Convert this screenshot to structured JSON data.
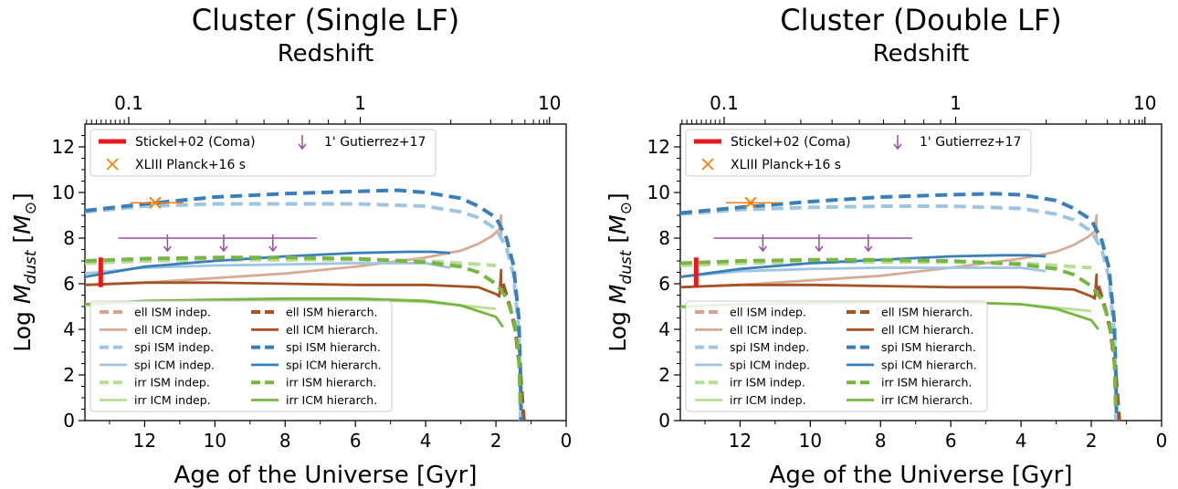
{
  "chart_data": [
    {
      "type": "line",
      "title": "Cluster (Single LF)",
      "xlabel": "Age of the Universe [Gyr]",
      "ylabel": "Log M_dust [M_sun]",
      "ylabel_parts": {
        "main": "Log ",
        "sym": "M",
        "sub": "dust",
        "unit_open": " [",
        "unit_sym": "M",
        "unit_sub": "⊙",
        "unit_close": "]"
      },
      "top_xlabel": "Redshift",
      "xlim": [
        13.7,
        0
      ],
      "ylim": [
        0,
        13
      ],
      "x_ticks": [
        "12",
        "10",
        "8",
        "6",
        "4",
        "2",
        "0"
      ],
      "y_ticks": [
        "0",
        "2",
        "4",
        "6",
        "8",
        "10",
        "12"
      ],
      "top_ticks": [
        "0.1",
        "1",
        "10"
      ],
      "data_legend": {
        "position": "upper left",
        "entries": [
          "Stickel+02 (Coma)",
          "XLIII Planck+16 s",
          "1' Gutierrez+17"
        ]
      },
      "series_legend": {
        "position": "lower left",
        "entries": [
          "ell ISM indep.",
          "ell ICM indep.",
          "spi ISM indep.",
          "spi ICM indep.",
          "irr ISM indep.",
          "irr ICM indep.",
          "ell ISM hierarch.",
          "ell ICM hierarch.",
          "spi ISM hierarch.",
          "spi ICM hierarch.",
          "irr ISM hierarch.",
          "irr ICM hierarch."
        ]
      },
      "series": [
        {
          "name": "ell ISM indep.",
          "color": "#d9a38a",
          "dash": true,
          "x": [
            13.7
          ],
          "y": [
            6.0
          ]
        },
        {
          "name": "ell ICM indep.",
          "color": "#d8ab97",
          "dash": false,
          "x": [
            13.7,
            12,
            10,
            8,
            6,
            4,
            3,
            2.5,
            2.1,
            1.9,
            1.85,
            1.85
          ],
          "y": [
            5.95,
            6.05,
            6.25,
            6.45,
            6.75,
            7.15,
            7.45,
            7.75,
            8.1,
            8.4,
            9.0,
            8.0
          ]
        },
        {
          "name": "spi ISM indep.",
          "color": "#9ec5e1",
          "dash": true,
          "x": [
            13.7,
            12,
            10,
            8,
            6,
            4,
            3,
            2.5,
            2,
            1.7,
            1.5,
            1.35,
            1.3
          ],
          "y": [
            9.15,
            9.4,
            9.5,
            9.5,
            9.5,
            9.4,
            9.15,
            8.9,
            8.4,
            7.6,
            6.4,
            4.0,
            0
          ]
        },
        {
          "name": "spi ICM indep.",
          "color": "#9ec5e1",
          "dash": false,
          "x": [
            13.7,
            12,
            10,
            8,
            6,
            4,
            3.3
          ],
          "y": [
            6.45,
            6.7,
            6.8,
            6.85,
            6.9,
            6.9,
            6.7
          ]
        },
        {
          "name": "irr ISM indep.",
          "color": "#b6df94",
          "dash": true,
          "x": [
            13.7,
            12,
            10,
            8,
            6,
            4,
            2
          ],
          "y": [
            6.9,
            7.0,
            7.05,
            7.05,
            7.05,
            7.0,
            6.8
          ]
        },
        {
          "name": "irr ICM indep.",
          "color": "#b6df94",
          "dash": false,
          "x": [
            13.7,
            12,
            10,
            8,
            6,
            4,
            2
          ],
          "y": [
            5.05,
            5.2,
            5.25,
            5.3,
            5.3,
            5.2,
            4.9
          ]
        },
        {
          "name": "ell ISM hierarch.",
          "color": "#a65224",
          "dash": true,
          "x": [
            1.8,
            1.6,
            1.45,
            1.3,
            1.25,
            1.2
          ],
          "y": [
            6.0,
            5.0,
            4.0,
            2.0,
            1.0,
            0
          ]
        },
        {
          "name": "ell ICM hierarch.",
          "color": "#a65224",
          "dash": false,
          "x": [
            13.7,
            12,
            10,
            8,
            6,
            4,
            2.5,
            2,
            1.9,
            1.85,
            1.85
          ],
          "y": [
            5.95,
            6.05,
            6.05,
            6.0,
            5.95,
            5.95,
            5.85,
            5.55,
            5.45,
            6.6,
            5.8
          ]
        },
        {
          "name": "spi ISM hierarch.",
          "color": "#3a7fb9",
          "dash": true,
          "x": [
            13.7,
            12,
            10,
            8,
            6,
            4.8,
            4,
            3,
            2.5,
            2,
            1.7,
            1.5,
            1.35,
            1.3,
            1.28
          ],
          "y": [
            9.2,
            9.5,
            9.8,
            9.95,
            10.05,
            10.1,
            10.0,
            9.75,
            9.4,
            8.9,
            8.0,
            6.8,
            4.5,
            2.0,
            0
          ]
        },
        {
          "name": "spi ICM hierarch.",
          "color": "#3a7fb9",
          "dash": false,
          "x": [
            13.7,
            12,
            10,
            8,
            6,
            4.5,
            3.8,
            3.3
          ],
          "y": [
            6.3,
            6.75,
            7.0,
            7.2,
            7.35,
            7.4,
            7.4,
            7.35
          ]
        },
        {
          "name": "irr ISM hierarch.",
          "color": "#76b73f",
          "dash": true,
          "x": [
            13.7,
            12,
            10,
            8,
            6,
            4,
            3,
            2.5,
            2,
            1.7,
            1.5,
            1.35,
            1.3
          ],
          "y": [
            7.0,
            7.1,
            7.15,
            7.15,
            7.1,
            6.95,
            6.75,
            6.5,
            6.0,
            5.4,
            4.5,
            3.0,
            0.5
          ]
        },
        {
          "name": "irr ICM hierarch.",
          "color": "#76b73f",
          "dash": false,
          "x": [
            13.7,
            12,
            10,
            8,
            6,
            4,
            3,
            2,
            1.8
          ],
          "y": [
            5.1,
            5.25,
            5.3,
            5.35,
            5.35,
            5.25,
            5.05,
            4.55,
            4.1
          ]
        }
      ],
      "observations": {
        "stickel": {
          "label": "Stickel+02 (Coma)",
          "color": "#e41a1c",
          "x": 13.25,
          "y_range": [
            5.85,
            7.15
          ]
        },
        "planck": {
          "label": "XLIII Planck+16 s",
          "color": "#ff7f0e",
          "x": 11.7,
          "y": 9.55,
          "x_range": [
            12.4,
            10.9
          ]
        },
        "gutierrez": {
          "label": "1' Gutierrez+17",
          "color": "#984ea3",
          "x": [
            11.35,
            9.75,
            8.35
          ],
          "y": 8.0,
          "x_range": [
            12.75,
            7.1
          ]
        }
      }
    },
    {
      "type": "line",
      "title": "Cluster (Double LF)",
      "xlabel": "Age of the Universe [Gyr]",
      "ylabel": "Log M_dust [M_sun]",
      "ylabel_parts": {
        "main": "Log ",
        "sym": "M",
        "sub": "dust",
        "unit_open": " [",
        "unit_sym": "M",
        "unit_sub": "⊙",
        "unit_close": "]"
      },
      "top_xlabel": "Redshift",
      "xlim": [
        13.7,
        0
      ],
      "ylim": [
        0,
        13
      ],
      "x_ticks": [
        "12",
        "10",
        "8",
        "6",
        "4",
        "2",
        "0"
      ],
      "y_ticks": [
        "0",
        "2",
        "4",
        "6",
        "8",
        "10",
        "12"
      ],
      "top_ticks": [
        "0.1",
        "1",
        "10"
      ],
      "data_legend": {
        "position": "upper left",
        "entries": [
          "Stickel+02 (Coma)",
          "XLIII Planck+16 s",
          "1' Gutierrez+17"
        ]
      },
      "series_legend": {
        "position": "lower left",
        "entries": [
          "ell ISM indep.",
          "ell ICM indep.",
          "spi ISM indep.",
          "spi ICM indep.",
          "irr ISM indep.",
          "irr ICM indep.",
          "ell ISM hierarch.",
          "ell ICM hierarch.",
          "spi ISM hierarch.",
          "spi ICM hierarch.",
          "irr ISM hierarch.",
          "irr ICM hierarch."
        ]
      },
      "series": [
        {
          "name": "ell ISM indep.",
          "color": "#d9a38a",
          "dash": true,
          "x": [
            13.7
          ],
          "y": [
            5.9
          ]
        },
        {
          "name": "ell ICM indep.",
          "color": "#d8ab97",
          "dash": false,
          "x": [
            13.7,
            12,
            10,
            8,
            6,
            4,
            3,
            2.5,
            2.1,
            1.9,
            1.85,
            1.85
          ],
          "y": [
            5.85,
            5.95,
            6.15,
            6.35,
            6.7,
            7.1,
            7.4,
            7.7,
            8.05,
            8.3,
            9.0,
            7.9
          ]
        },
        {
          "name": "spi ISM indep.",
          "color": "#9ec5e1",
          "dash": true,
          "x": [
            13.7,
            12,
            10,
            8,
            6,
            4,
            3,
            2.5,
            2,
            1.7,
            1.5,
            1.35,
            1.3
          ],
          "y": [
            9.05,
            9.25,
            9.35,
            9.4,
            9.4,
            9.3,
            9.05,
            8.8,
            8.3,
            7.5,
            6.3,
            3.9,
            0
          ]
        },
        {
          "name": "spi ICM indep.",
          "color": "#9ec5e1",
          "dash": false,
          "x": [
            13.7,
            12,
            10,
            8,
            6,
            4,
            3.3
          ],
          "y": [
            6.3,
            6.55,
            6.65,
            6.7,
            6.7,
            6.7,
            6.55
          ]
        },
        {
          "name": "irr ISM indep.",
          "color": "#b6df94",
          "dash": true,
          "x": [
            13.7,
            12,
            10,
            8,
            6,
            4,
            2
          ],
          "y": [
            6.8,
            6.9,
            6.95,
            6.95,
            6.95,
            6.9,
            6.7
          ]
        },
        {
          "name": "irr ICM indep.",
          "color": "#b6df94",
          "dash": false,
          "x": [
            13.7,
            12,
            10,
            8,
            6,
            4,
            2
          ],
          "y": [
            4.95,
            5.1,
            5.15,
            5.2,
            5.2,
            5.1,
            4.8
          ]
        },
        {
          "name": "ell ISM hierarch.",
          "color": "#a65224",
          "dash": true,
          "x": [
            1.8,
            1.6,
            1.45,
            1.3,
            1.25,
            1.2
          ],
          "y": [
            5.9,
            4.9,
            3.9,
            2.0,
            1.0,
            0
          ]
        },
        {
          "name": "ell ICM hierarch.",
          "color": "#a65224",
          "dash": false,
          "x": [
            13.7,
            12,
            10,
            8,
            6,
            4,
            2.5,
            2,
            1.9,
            1.85,
            1.85
          ],
          "y": [
            5.85,
            5.95,
            5.95,
            5.9,
            5.85,
            5.85,
            5.75,
            5.45,
            5.35,
            6.4,
            5.7
          ]
        },
        {
          "name": "spi ISM hierarch.",
          "color": "#3a7fb9",
          "dash": true,
          "x": [
            13.7,
            12,
            10,
            8,
            6,
            4.8,
            4,
            3,
            2.5,
            2,
            1.7,
            1.5,
            1.35,
            1.3,
            1.28
          ],
          "y": [
            9.1,
            9.35,
            9.6,
            9.8,
            9.9,
            9.95,
            9.9,
            9.65,
            9.3,
            8.8,
            7.9,
            6.7,
            4.4,
            2.0,
            0
          ]
        },
        {
          "name": "spi ICM hierarch.",
          "color": "#3a7fb9",
          "dash": false,
          "x": [
            13.7,
            12,
            10,
            8,
            6,
            4.5,
            3.8,
            3.3
          ],
          "y": [
            6.3,
            6.65,
            6.9,
            7.05,
            7.2,
            7.25,
            7.25,
            7.2
          ]
        },
        {
          "name": "irr ISM hierarch.",
          "color": "#76b73f",
          "dash": true,
          "x": [
            13.7,
            12,
            10,
            8,
            6,
            4,
            3,
            2.5,
            2,
            1.7,
            1.5,
            1.35,
            1.3
          ],
          "y": [
            6.9,
            7.0,
            7.05,
            7.05,
            7.0,
            6.85,
            6.65,
            6.4,
            5.9,
            5.3,
            4.4,
            2.9,
            0.5
          ]
        },
        {
          "name": "irr ICM hierarch.",
          "color": "#76b73f",
          "dash": false,
          "x": [
            13.7,
            12,
            10,
            8,
            6,
            4,
            3,
            2,
            1.8
          ],
          "y": [
            5.0,
            5.1,
            5.15,
            5.2,
            5.2,
            5.1,
            4.9,
            4.4,
            4.0
          ]
        }
      ],
      "observations": {
        "stickel": {
          "label": "Stickel+02 (Coma)",
          "color": "#e41a1c",
          "x": 13.25,
          "y_range": [
            5.85,
            7.15
          ]
        },
        "planck": {
          "label": "XLIII Planck+16 s",
          "color": "#ff7f0e",
          "x": 11.7,
          "y": 9.55,
          "x_range": [
            12.4,
            10.9
          ]
        },
        "gutierrez": {
          "label": "1' Gutierrez+17",
          "color": "#984ea3",
          "x": [
            11.35,
            9.75,
            8.35
          ],
          "y": 8.0,
          "x_range": [
            12.75,
            7.1
          ]
        }
      }
    }
  ]
}
